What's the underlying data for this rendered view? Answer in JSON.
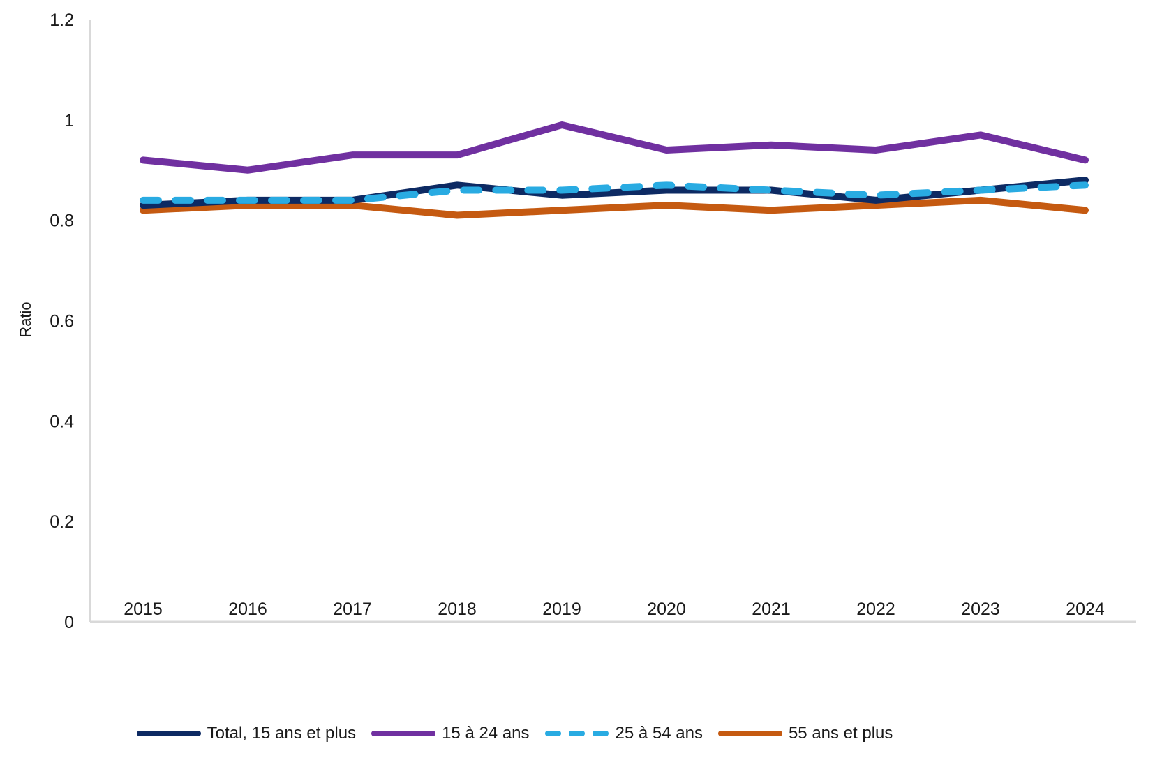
{
  "chart_data": {
    "type": "line",
    "title": "",
    "xlabel": "",
    "ylabel": "Ratio",
    "x": [
      "2015",
      "2016",
      "2017",
      "2018",
      "2019",
      "2020",
      "2021",
      "2022",
      "2023",
      "2024"
    ],
    "ylim": [
      0,
      1.2
    ],
    "yticks": [
      0,
      0.2,
      0.4,
      0.6,
      0.8,
      1,
      1.2
    ],
    "ytick_labels": [
      "0",
      "0.2",
      "0.4",
      "0.6",
      "0.8",
      "1",
      "1.2"
    ],
    "grid": false,
    "legend_position": "bottom",
    "axis_color": "#D9D9D9",
    "text_color": "#1a1a1a",
    "draw_order": [
      1,
      3,
      0,
      2
    ],
    "series": [
      {
        "name": "Total, 15 ans et plus",
        "color": "#0D2A63",
        "dash": "solid",
        "values": [
          0.83,
          0.84,
          0.84,
          0.87,
          0.85,
          0.86,
          0.86,
          0.84,
          0.86,
          0.88
        ]
      },
      {
        "name": "15 à 24 ans",
        "color": "#7030A0",
        "dash": "solid",
        "values": [
          0.92,
          0.9,
          0.93,
          0.93,
          0.99,
          0.94,
          0.95,
          0.94,
          0.97,
          0.92
        ]
      },
      {
        "name": "25 à 54 ans",
        "color": "#29ABE2",
        "dash": "dashed",
        "values": [
          0.84,
          0.84,
          0.84,
          0.86,
          0.86,
          0.87,
          0.86,
          0.85,
          0.86,
          0.87
        ]
      },
      {
        "name": "55 ans et plus",
        "color": "#C55A11",
        "dash": "solid",
        "values": [
          0.82,
          0.83,
          0.83,
          0.81,
          0.82,
          0.83,
          0.82,
          0.83,
          0.84,
          0.82
        ]
      }
    ]
  }
}
